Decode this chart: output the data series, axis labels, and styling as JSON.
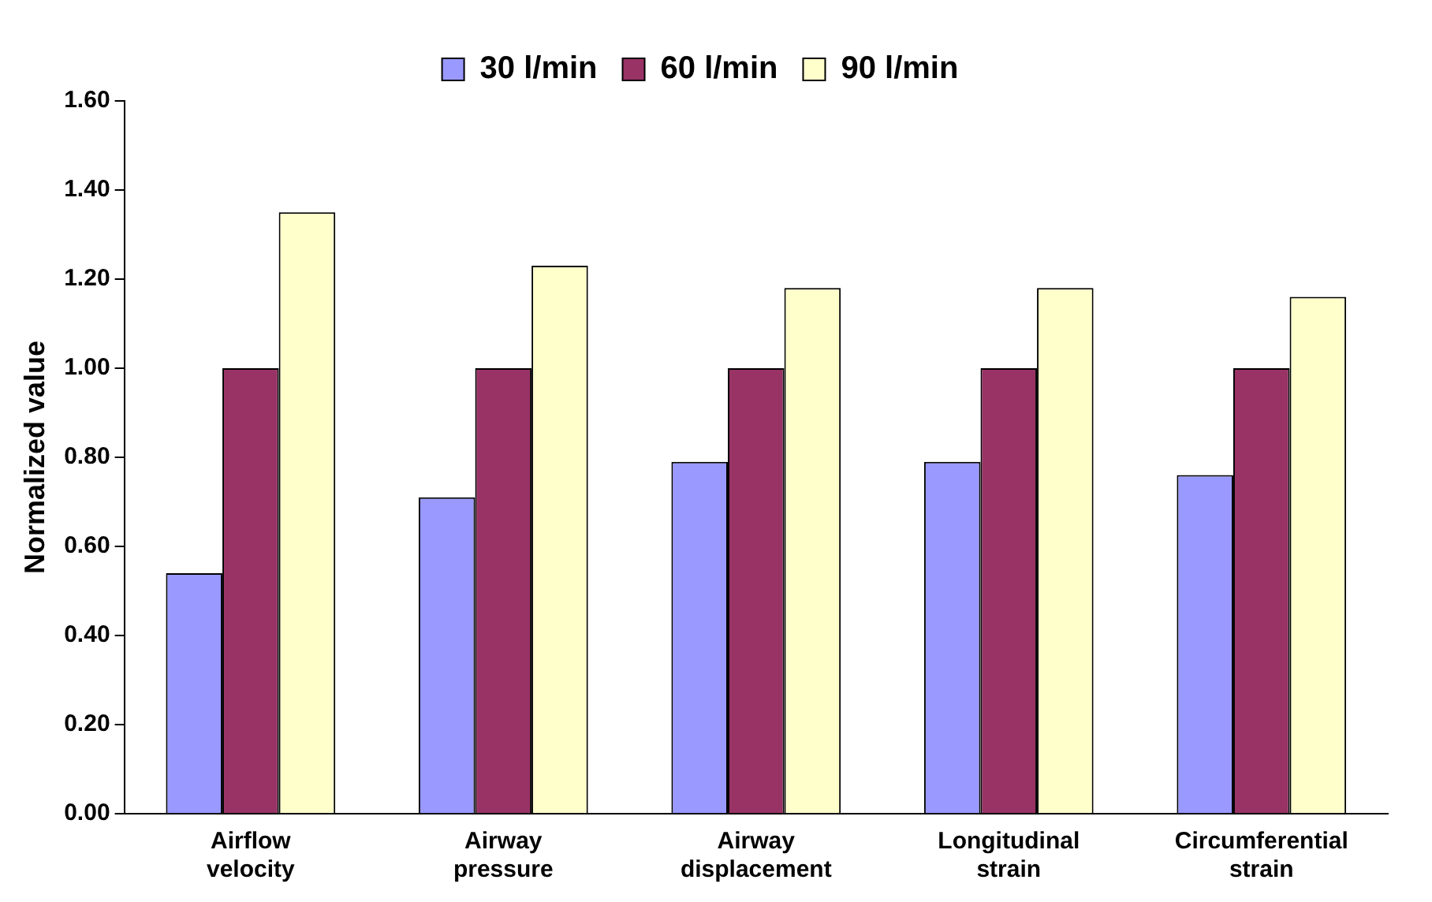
{
  "chart_data": {
    "type": "bar",
    "ylabel": "Normalized value",
    "categories": [
      "Airflow velocity",
      "Airway pressure",
      "Airway displacement",
      "Longitudinal strain",
      "Circumferential strain"
    ],
    "series": [
      {
        "name": "30 l/min",
        "color": "#9999ff",
        "values": [
          0.54,
          0.71,
          0.79,
          0.79,
          0.76
        ]
      },
      {
        "name": "60 l/min",
        "color": "#993366",
        "values": [
          1.0,
          1.0,
          1.0,
          1.0,
          1.0
        ]
      },
      {
        "name": "90 l/min",
        "color": "#ffffcc",
        "values": [
          1.35,
          1.23,
          1.18,
          1.18,
          1.16
        ]
      }
    ],
    "ylim": [
      0,
      1.6
    ],
    "yticks": [
      {
        "value": 0,
        "label": "0.00"
      },
      {
        "value": 0.2,
        "label": "0.20"
      },
      {
        "value": 0.4,
        "label": "0.40"
      },
      {
        "value": 0.6,
        "label": "0.60"
      },
      {
        "value": 0.8,
        "label": "0.80"
      },
      {
        "value": 1.0,
        "label": "1.00"
      },
      {
        "value": 1.2,
        "label": "1.20"
      },
      {
        "value": 1.4,
        "label": "1.40"
      },
      {
        "value": 1.6,
        "label": "1.60"
      }
    ],
    "grid": false,
    "legend": "top"
  }
}
